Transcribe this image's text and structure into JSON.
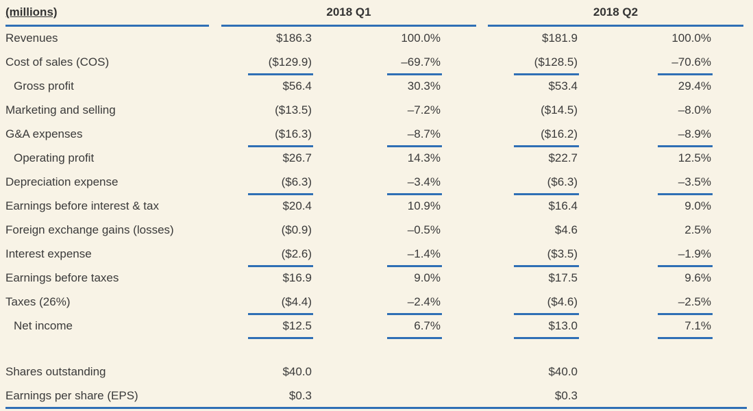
{
  "table": {
    "header": [
      "(millions)",
      "2018 Q1",
      "2018 Q2"
    ],
    "rows": [
      {
        "label": "Revenues",
        "q1": [
          "$186.3",
          "100.0%"
        ],
        "q2": [
          "$181.9",
          "100.0%"
        ]
      },
      {
        "label": "Cost of sales (COS)",
        "q1": [
          "($129.9)",
          "–69.7%"
        ],
        "q2": [
          "($128.5)",
          "–70.6%"
        ]
      },
      {
        "label": "Gross profit",
        "q1": [
          "$56.4",
          "30.3%"
        ],
        "q2": [
          "$53.4",
          "29.4%"
        ]
      },
      {
        "label": "Marketing and selling",
        "q1": [
          "($13.5)",
          "–7.2%"
        ],
        "q2": [
          "($14.5)",
          "–8.0%"
        ]
      },
      {
        "label": "G&A expenses",
        "q1": [
          "($16.3)",
          "–8.7%"
        ],
        "q2": [
          "($16.2)",
          "–8.9%"
        ]
      },
      {
        "label": "Operating profit",
        "q1": [
          "$26.7",
          "14.3%"
        ],
        "q2": [
          "$22.7",
          "12.5%"
        ]
      },
      {
        "label": "Depreciation expense",
        "q1": [
          "($6.3)",
          "–3.4%"
        ],
        "q2": [
          "($6.3)",
          "–3.5%"
        ]
      },
      {
        "label": "Earnings before interest & tax",
        "q1": [
          "$20.4",
          "10.9%"
        ],
        "q2": [
          "$16.4",
          "9.0%"
        ]
      },
      {
        "label": "Foreign exchange gains (losses)",
        "q1": [
          "($0.9)",
          "–0.5%"
        ],
        "q2": [
          "$4.6",
          "2.5%"
        ]
      },
      {
        "label": "Interest expense",
        "q1": [
          "($2.6)",
          "–1.4%"
        ],
        "q2": [
          "($3.5)",
          "–1.9%"
        ]
      },
      {
        "label": "Earnings before taxes",
        "q1": [
          "$16.9",
          "9.0%"
        ],
        "q2": [
          "$17.5",
          "9.6%"
        ]
      },
      {
        "label": "Taxes (26%)",
        "q1": [
          "($4.4)",
          "–2.4%"
        ],
        "q2": [
          "($4.6)",
          "–2.5%"
        ]
      },
      {
        "label": "Net income",
        "q1": [
          "$12.5",
          "6.7%"
        ],
        "q2": [
          "$13.0",
          "7.1%"
        ]
      },
      {
        "label": "Shares outstanding",
        "q1": [
          "$40.0"
        ],
        "q2": [
          "$40.0"
        ]
      },
      {
        "label": "Earnings per share (EPS)",
        "q1": [
          "$0.3"
        ],
        "q2": [
          "$0.3"
        ]
      }
    ]
  }
}
